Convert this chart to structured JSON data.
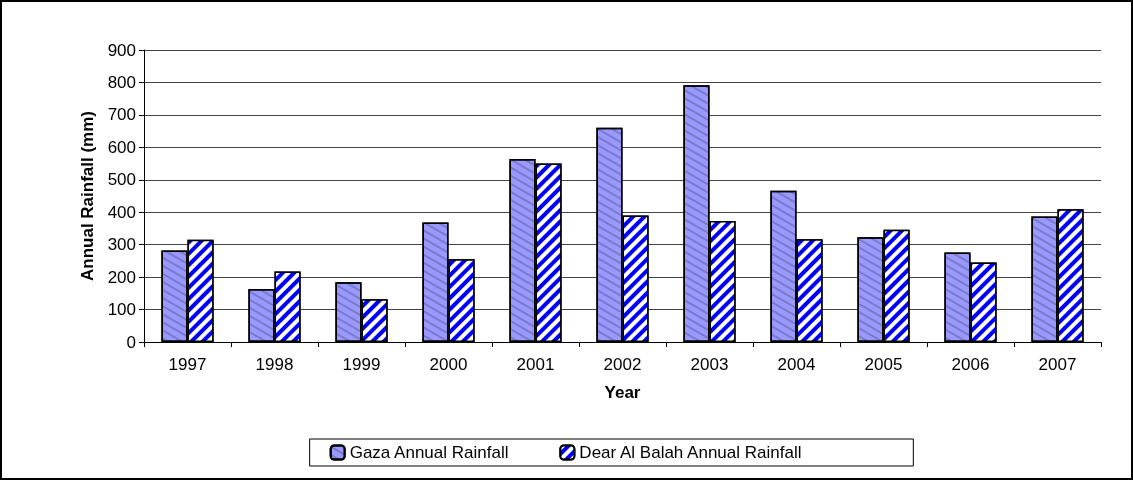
{
  "chart_data": {
    "type": "bar",
    "xlabel": "Year",
    "ylabel": "Annual Rainfall (mm)",
    "categories": [
      "1997",
      "1998",
      "1999",
      "2000",
      "2001",
      "2002",
      "2003",
      "2004",
      "2005",
      "2006",
      "2007"
    ],
    "series": [
      {
        "name": "Gaza Annual Rainfall",
        "color": "#9999ff",
        "values": [
          282,
          163,
          184,
          368,
          564,
          660,
          791,
          466,
          323,
          276,
          387
        ]
      },
      {
        "name": "Dear Al Balah Annual Rainfall",
        "color": "#0000ff",
        "values": [
          315,
          217,
          132,
          255,
          550,
          390,
          373,
          317,
          346,
          245,
          409
        ]
      }
    ],
    "ylim": [
      0,
      900
    ],
    "yticks": [
      0,
      100,
      200,
      300,
      400,
      500,
      600,
      700,
      800,
      900
    ],
    "grid": "y",
    "legend": "bottom"
  }
}
